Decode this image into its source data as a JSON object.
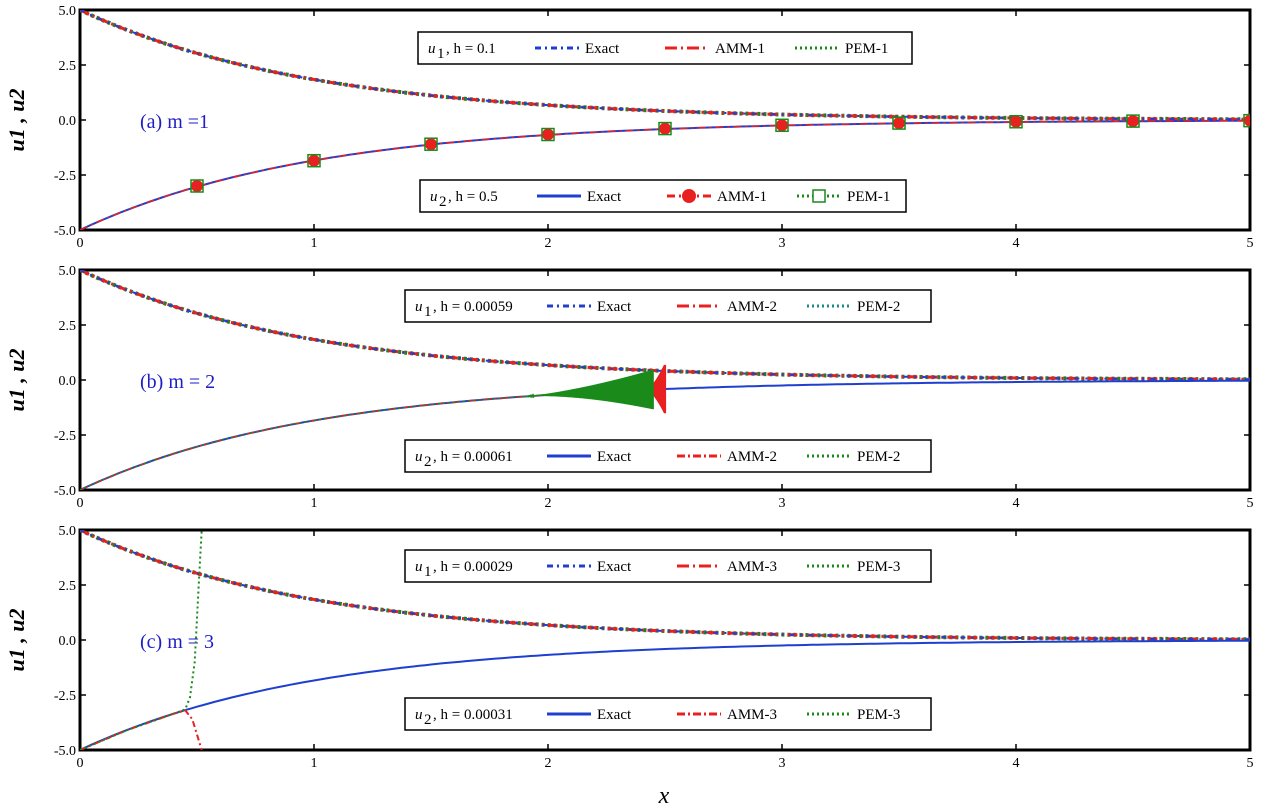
{
  "figure": {
    "x_axis_label": "x",
    "y_axis_label": "u1 , u2"
  },
  "chart_data": [
    {
      "type": "line",
      "panel_label": "(a)  m =1",
      "xlim": [
        0,
        5
      ],
      "ylim": [
        -5.0,
        5.0
      ],
      "x_ticks": [
        "0",
        "1",
        "2",
        "3",
        "4",
        "5"
      ],
      "y_ticks": [
        "5.0",
        "2.5",
        "0.0",
        "-2.5",
        "-5.0"
      ],
      "grid": false,
      "legends": [
        {
          "position": "top-center",
          "title_var": "u",
          "title_sub": "1",
          "title_rest": ",  h = 0.1",
          "entries": [
            {
              "name": "Exact",
              "color": "#1f3fcf",
              "dash": "6,4,2,4",
              "marker": "none"
            },
            {
              "name": "AMM-1",
              "color": "#e82020",
              "dash": "12,4,2,4",
              "marker": "none"
            },
            {
              "name": "PEM-1",
              "color": "#1a8a1a",
              "dash": "2,3",
              "marker": "none"
            }
          ]
        },
        {
          "position": "bottom-center",
          "title_var": "u",
          "title_sub": "2",
          "title_rest": ",  h = 0.5",
          "entries": [
            {
              "name": "Exact",
              "color": "#1f3fcf",
              "dash": "",
              "marker": "none"
            },
            {
              "name": "AMM-1",
              "color": "#e82020",
              "dash": "8,4,2,4",
              "marker": "circle"
            },
            {
              "name": "PEM-1",
              "color": "#1a8a1a",
              "dash": "2,3",
              "marker": "square"
            }
          ]
        }
      ],
      "series": [
        {
          "name": "u1 Exact",
          "component": "u1",
          "method": "exact",
          "x": [
            0,
            0.5,
            1,
            1.5,
            2,
            2.5,
            3,
            3.5,
            4,
            4.5,
            5
          ],
          "y": [
            5.0,
            3.03,
            1.84,
            1.12,
            0.68,
            0.41,
            0.25,
            0.15,
            0.09,
            0.06,
            0.03
          ]
        },
        {
          "name": "u2 Exact",
          "component": "u2",
          "method": "exact",
          "x": [
            0,
            0.5,
            1,
            1.5,
            2,
            2.5,
            3,
            3.5,
            4,
            4.5,
            5
          ],
          "y": [
            -5.0,
            -3.03,
            -1.84,
            -1.12,
            -0.68,
            -0.41,
            -0.25,
            -0.15,
            -0.09,
            -0.06,
            -0.03
          ]
        },
        {
          "name": "u2 AMM-1",
          "component": "u2",
          "method": "amm",
          "x": [
            0,
            0.5,
            1,
            1.5,
            2,
            2.5,
            3,
            3.5,
            4,
            4.5,
            5
          ],
          "y": [
            -5.0,
            -3.0,
            -1.85,
            -1.1,
            -0.66,
            -0.39,
            -0.24,
            -0.14,
            -0.08,
            -0.05,
            -0.03
          ]
        },
        {
          "name": "u2 PEM-1",
          "component": "u2",
          "method": "pem",
          "x": [
            0,
            0.5,
            1,
            1.5,
            2,
            2.5,
            3,
            3.5,
            4,
            4.5,
            5
          ],
          "y": [
            -5.0,
            -3.0,
            -1.85,
            -1.1,
            -0.66,
            -0.39,
            -0.24,
            -0.14,
            -0.08,
            -0.05,
            -0.03
          ]
        }
      ]
    },
    {
      "type": "line",
      "panel_label": "(b)  m = 2",
      "xlim": [
        0,
        5
      ],
      "ylim": [
        -5.0,
        5.0
      ],
      "x_ticks": [
        "0",
        "1",
        "2",
        "3",
        "4",
        "5"
      ],
      "y_ticks": [
        "5.0",
        "2.5",
        "0.0",
        "-2.5",
        "-5.0"
      ],
      "grid": false,
      "legends": [
        {
          "position": "top-center",
          "title_var": "u",
          "title_sub": "1",
          "title_rest": ",  h = 0.00059",
          "entries": [
            {
              "name": "Exact",
              "color": "#1f3fcf",
              "dash": "6,4,2,4",
              "marker": "none"
            },
            {
              "name": "AMM-2",
              "color": "#e82020",
              "dash": "12,4,2,4",
              "marker": "none"
            },
            {
              "name": "PEM-2",
              "color": "#1a8a8a",
              "dash": "2,3",
              "marker": "none"
            }
          ]
        },
        {
          "position": "bottom-center",
          "title_var": "u",
          "title_sub": "2",
          "title_rest": ",  h = 0.00061",
          "entries": [
            {
              "name": "Exact",
              "color": "#1f3fcf",
              "dash": "",
              "marker": "none"
            },
            {
              "name": "AMM-2",
              "color": "#e82020",
              "dash": "8,3,2,3",
              "marker": "none"
            },
            {
              "name": "PEM-2",
              "color": "#1a8a1a",
              "dash": "2,3",
              "marker": "none"
            }
          ]
        }
      ],
      "series": [
        {
          "name": "u1 Exact",
          "component": "u1",
          "method": "exact",
          "x": [
            0,
            0.5,
            1,
            1.5,
            2,
            2.5,
            3,
            3.5,
            4,
            4.5,
            5
          ],
          "y": [
            5.0,
            3.03,
            1.84,
            1.12,
            0.68,
            0.41,
            0.25,
            0.15,
            0.09,
            0.06,
            0.03
          ]
        },
        {
          "name": "u2 Exact",
          "component": "u2",
          "method": "exact",
          "x": [
            0,
            0.5,
            1,
            1.5,
            2,
            2.5,
            3,
            3.5,
            4,
            4.5,
            5
          ],
          "y": [
            -5.0,
            -3.03,
            -1.84,
            -1.12,
            -0.68,
            -0.41,
            -0.25,
            -0.15,
            -0.09,
            -0.06,
            -0.03
          ]
        },
        {
          "name": "u2 AMM-2",
          "component": "u2",
          "method": "amm",
          "x": [
            0,
            0.5,
            1,
            1.5,
            2,
            2.3,
            2.5
          ],
          "y": [
            -5.0,
            -3.03,
            -1.84,
            -1.12,
            -0.68,
            -0.5,
            -0.41
          ],
          "oscillation": {
            "x_start": 2.42,
            "x_end": 2.5,
            "max_amplitude": 1.1
          }
        },
        {
          "name": "u2 PEM-2",
          "component": "u2",
          "method": "pem",
          "x": [
            0,
            0.5,
            1,
            1.5,
            2,
            2.3,
            2.45
          ],
          "y": [
            -5.0,
            -3.03,
            -1.84,
            -1.12,
            -0.68,
            -0.5,
            -0.44
          ],
          "oscillation": {
            "x_start": 1.9,
            "x_end": 2.45,
            "max_amplitude": 0.9
          }
        }
      ]
    },
    {
      "type": "line",
      "panel_label": "(c)  m = 3",
      "xlim": [
        0,
        5
      ],
      "ylim": [
        -5.0,
        5.0
      ],
      "x_ticks": [
        "0",
        "1",
        "2",
        "3",
        "4",
        "5"
      ],
      "y_ticks": [
        "5.0",
        "2.5",
        "0.0",
        "-2.5",
        "-5.0"
      ],
      "grid": false,
      "legends": [
        {
          "position": "top-center",
          "title_var": "u",
          "title_sub": "1",
          "title_rest": ",  h = 0.00029",
          "entries": [
            {
              "name": "Exact",
              "color": "#1f3fcf",
              "dash": "6,4,2,4",
              "marker": "none"
            },
            {
              "name": "AMM-3",
              "color": "#e82020",
              "dash": "12,4,2,4",
              "marker": "none"
            },
            {
              "name": "PEM-3",
              "color": "#1a8a1a",
              "dash": "2,3",
              "marker": "none"
            }
          ]
        },
        {
          "position": "bottom-center",
          "title_var": "u",
          "title_sub": "2",
          "title_rest": ",  h = 0.00031",
          "entries": [
            {
              "name": "Exact",
              "color": "#1f3fcf",
              "dash": "",
              "marker": "none"
            },
            {
              "name": "AMM-3",
              "color": "#e82020",
              "dash": "8,3,2,3",
              "marker": "none"
            },
            {
              "name": "PEM-3",
              "color": "#1a8a1a",
              "dash": "2,3",
              "marker": "none"
            }
          ]
        }
      ],
      "series": [
        {
          "name": "u1 Exact",
          "component": "u1",
          "method": "exact",
          "x": [
            0,
            0.5,
            1,
            1.5,
            2,
            2.5,
            3,
            3.5,
            4,
            4.5,
            5
          ],
          "y": [
            5.0,
            3.03,
            1.84,
            1.12,
            0.68,
            0.41,
            0.25,
            0.15,
            0.09,
            0.06,
            0.03
          ]
        },
        {
          "name": "u2 Exact",
          "component": "u2",
          "method": "exact",
          "x": [
            0,
            0.5,
            1,
            1.5,
            2,
            2.5,
            3,
            3.5,
            4,
            4.5,
            5
          ],
          "y": [
            -5.0,
            -3.03,
            -1.84,
            -1.12,
            -0.68,
            -0.41,
            -0.25,
            -0.15,
            -0.09,
            -0.06,
            -0.03
          ]
        },
        {
          "name": "u2 AMM-3",
          "component": "u2",
          "method": "amm",
          "x": [
            0,
            0.2,
            0.4,
            0.45,
            0.48,
            0.5,
            0.52
          ],
          "y": [
            -5.0,
            -4.1,
            -3.35,
            -3.2,
            -3.6,
            -4.3,
            -5.0
          ]
        },
        {
          "name": "u2 PEM-3",
          "component": "u2",
          "method": "pem",
          "x": [
            0,
            0.2,
            0.4,
            0.45,
            0.47,
            0.49,
            0.5,
            0.51,
            0.52
          ],
          "y": [
            -5.0,
            -4.1,
            -3.35,
            -3.15,
            -2.6,
            -1.0,
            1.0,
            3.0,
            5.0
          ]
        }
      ]
    }
  ]
}
